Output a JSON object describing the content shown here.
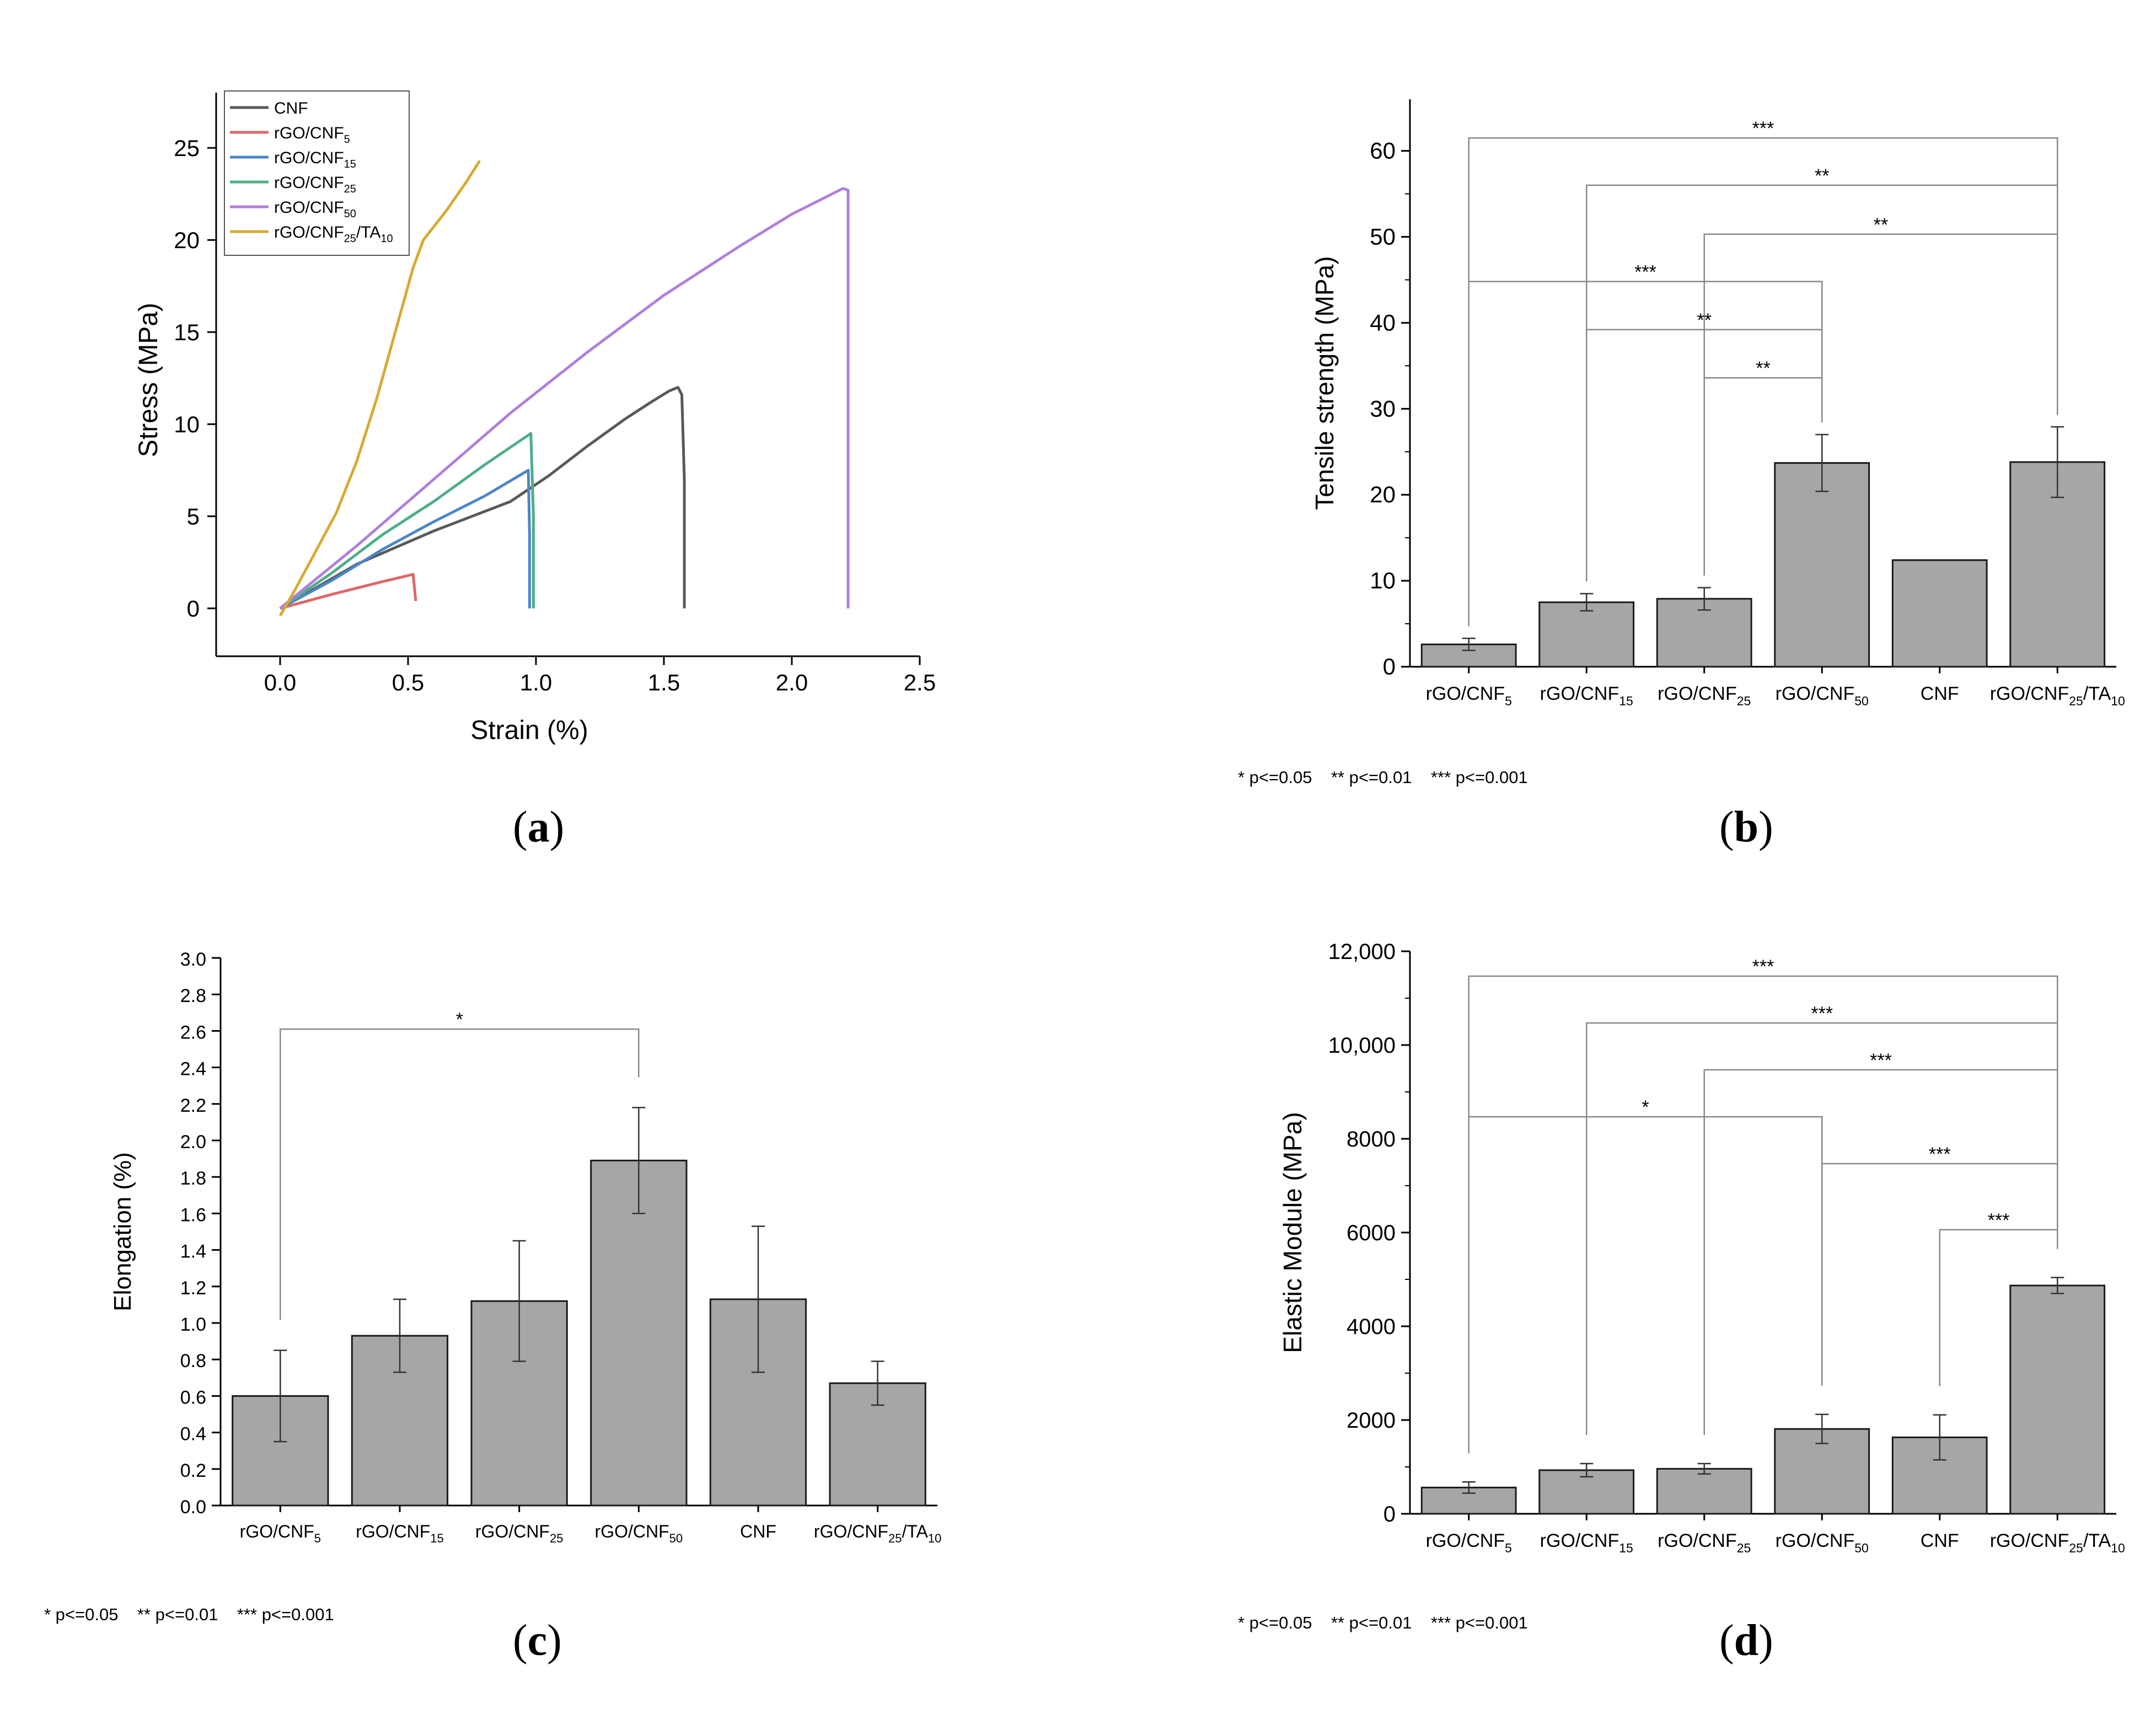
{
  "chart_data": [
    {
      "id": "a",
      "type": "line",
      "panel_label": "a",
      "xlabel": "Strain (%)",
      "ylabel": "Stress (MPa)",
      "xlim": [
        -0.25,
        2.5
      ],
      "ylim": [
        -2.6,
        28
      ],
      "xticks": [
        "0.0",
        "0.5",
        "1.0",
        "1.5",
        "2.0",
        "2.5"
      ],
      "yticks": [
        "0",
        "5",
        "10",
        "15",
        "20",
        "25"
      ],
      "legend_position": "top-left",
      "series": [
        {
          "name": "CNF",
          "label_base": "CNF",
          "label_sub": "",
          "label_tail": "",
          "label_sub2": "",
          "color": "#595959",
          "points": [
            [
              0,
              0
            ],
            [
              0.3,
              2.4
            ],
            [
              0.6,
              4.2
            ],
            [
              0.9,
              5.8
            ],
            [
              1.05,
              7.2
            ],
            [
              1.2,
              8.8
            ],
            [
              1.35,
              10.3
            ],
            [
              1.45,
              11.2
            ],
            [
              1.52,
              11.8
            ],
            [
              1.555,
              12.0
            ],
            [
              1.57,
              11.6
            ],
            [
              1.58,
              7
            ],
            [
              1.58,
              0
            ]
          ]
        },
        {
          "name": "rGO/CNF5",
          "label_base": "rGO/CNF",
          "label_sub": "5",
          "label_tail": "",
          "label_sub2": "",
          "color": "#e06666",
          "points": [
            [
              0,
              0
            ],
            [
              0.2,
              0.75
            ],
            [
              0.4,
              1.45
            ],
            [
              0.52,
              1.85
            ],
            [
              0.53,
              0.4
            ]
          ]
        },
        {
          "name": "rGO/CNF15",
          "label_base": "rGO/CNF",
          "label_sub": "15",
          "label_tail": "",
          "label_sub2": "",
          "color": "#4a86c8",
          "points": [
            [
              0,
              0
            ],
            [
              0.2,
              1.5
            ],
            [
              0.4,
              3.2
            ],
            [
              0.6,
              4.7
            ],
            [
              0.8,
              6.1
            ],
            [
              0.97,
              7.5
            ],
            [
              0.975,
              4
            ],
            [
              0.975,
              0
            ]
          ]
        },
        {
          "name": "rGO/CNF25",
          "label_base": "rGO/CNF",
          "label_sub": "25",
          "label_tail": "",
          "label_sub2": "",
          "color": "#4caf85",
          "points": [
            [
              0,
              0
            ],
            [
              0.2,
              1.9
            ],
            [
              0.4,
              4.0
            ],
            [
              0.6,
              5.8
            ],
            [
              0.8,
              7.8
            ],
            [
              0.98,
              9.5
            ],
            [
              0.99,
              5
            ],
            [
              0.99,
              0
            ]
          ]
        },
        {
          "name": "rGO/CNF50",
          "label_base": "rGO/CNF",
          "label_sub": "50",
          "label_tail": "",
          "label_sub2": "",
          "color": "#b07fdc",
          "points": [
            [
              0,
              0
            ],
            [
              0.3,
              3.4
            ],
            [
              0.6,
              7.0
            ],
            [
              0.9,
              10.6
            ],
            [
              1.2,
              13.9
            ],
            [
              1.5,
              17.0
            ],
            [
              1.8,
              19.7
            ],
            [
              2.0,
              21.4
            ],
            [
              2.2,
              22.8
            ],
            [
              2.22,
              22.7
            ],
            [
              2.22,
              12
            ],
            [
              2.22,
              0
            ]
          ]
        },
        {
          "name": "rGO/CNF25/TA10",
          "label_base": "rGO/CNF",
          "label_sub": "25",
          "label_tail": "/TA",
          "label_sub2": "10",
          "color": "#d6aa32",
          "points": [
            [
              0,
              -0.4
            ],
            [
              0.05,
              0.8
            ],
            [
              0.12,
              2.6
            ],
            [
              0.22,
              5.2
            ],
            [
              0.3,
              8.0
            ],
            [
              0.38,
              11.5
            ],
            [
              0.45,
              15.0
            ],
            [
              0.52,
              18.5
            ],
            [
              0.56,
              20.0
            ],
            [
              0.65,
              21.6
            ],
            [
              0.73,
              23.2
            ],
            [
              0.78,
              24.3
            ]
          ]
        }
      ]
    },
    {
      "id": "b",
      "type": "bar",
      "panel_label": "b",
      "ylabel": "Tensile strength (MPa)",
      "ylim": [
        0,
        66
      ],
      "yticks": [
        "0",
        "10",
        "20",
        "30",
        "40",
        "50",
        "60"
      ],
      "categories": [
        {
          "base": "rGO/CNF",
          "sub": "5",
          "tail": "",
          "sub2": ""
        },
        {
          "base": "rGO/CNF",
          "sub": "15",
          "tail": "",
          "sub2": ""
        },
        {
          "base": "rGO/CNF",
          "sub": "25",
          "tail": "",
          "sub2": ""
        },
        {
          "base": "rGO/CNF",
          "sub": "50",
          "tail": "",
          "sub2": ""
        },
        {
          "base": "CNF",
          "sub": "",
          "tail": "",
          "sub2": ""
        },
        {
          "base": "rGO/CNF",
          "sub": "25",
          "tail": "/TA",
          "sub2": "10"
        }
      ],
      "values": [
        2.6,
        7.5,
        7.9,
        23.7,
        12.4,
        23.8
      ],
      "errors": [
        0.7,
        1.0,
        1.3,
        3.3,
        0,
        4.1
      ],
      "brackets": [
        {
          "from": 0,
          "to": 5,
          "y": 61.5,
          "label": "***"
        },
        {
          "from": 1,
          "to": 5,
          "y": 56.0,
          "label": "**"
        },
        {
          "from": 2,
          "to": 5,
          "y": 50.3,
          "label": "**"
        },
        {
          "from": 0,
          "to": 3,
          "y": 44.8,
          "label": "***"
        },
        {
          "from": 1,
          "to": 3,
          "y": 39.2,
          "label": "**"
        },
        {
          "from": 2,
          "to": 3,
          "y": 33.6,
          "label": "**"
        }
      ],
      "significance_legend": "* p<=0.05    ** p<=0.01    *** p<=0.001"
    },
    {
      "id": "c",
      "type": "bar",
      "panel_label": "c",
      "ylabel": "Elongation (%)",
      "ylim": [
        0,
        3.0
      ],
      "yticks": [
        "0.0",
        "0.2",
        "0.4",
        "0.6",
        "0.8",
        "1.0",
        "1.2",
        "1.4",
        "1.6",
        "1.8",
        "2.0",
        "2.2",
        "2.4",
        "2.6",
        "2.8",
        "3.0"
      ],
      "categories": [
        {
          "base": "rGO/CNF",
          "sub": "5",
          "tail": "",
          "sub2": ""
        },
        {
          "base": "rGO/CNF",
          "sub": "15",
          "tail": "",
          "sub2": ""
        },
        {
          "base": "rGO/CNF",
          "sub": "25",
          "tail": "",
          "sub2": ""
        },
        {
          "base": "rGO/CNF",
          "sub": "50",
          "tail": "",
          "sub2": ""
        },
        {
          "base": "CNF",
          "sub": "",
          "tail": "",
          "sub2": ""
        },
        {
          "base": "rGO/CNF",
          "sub": "25",
          "tail": "/TA",
          "sub2": "10"
        }
      ],
      "values": [
        0.6,
        0.93,
        1.12,
        1.89,
        1.13,
        0.67
      ],
      "errors": [
        0.25,
        0.2,
        0.33,
        0.29,
        0.4,
        0.12
      ],
      "brackets": [
        {
          "from": 0,
          "to": 3,
          "y": 2.61,
          "label": "*"
        }
      ],
      "significance_legend": "* p<=0.05    ** p<=0.01    *** p<=0.001"
    },
    {
      "id": "d",
      "type": "bar",
      "panel_label": "d",
      "ylabel": "Elastic Module (MPa)",
      "ylim": [
        0,
        12000
      ],
      "yticks": [
        "0",
        "2000",
        "4000",
        "6000",
        "8000",
        "10,000",
        "12,000"
      ],
      "categories": [
        {
          "base": "rGO/CNF",
          "sub": "5",
          "tail": "",
          "sub2": ""
        },
        {
          "base": "rGO/CNF",
          "sub": "15",
          "tail": "",
          "sub2": ""
        },
        {
          "base": "rGO/CNF",
          "sub": "25",
          "tail": "",
          "sub2": ""
        },
        {
          "base": "rGO/CNF",
          "sub": "50",
          "tail": "",
          "sub2": ""
        },
        {
          "base": "CNF",
          "sub": "",
          "tail": "",
          "sub2": ""
        },
        {
          "base": "rGO/CNF",
          "sub": "25",
          "tail": "/TA",
          "sub2": "10"
        }
      ],
      "values": [
        560,
        930,
        960,
        1810,
        1630,
        4870
      ],
      "errors": [
        120,
        140,
        110,
        310,
        480,
        170
      ],
      "brackets": [
        {
          "from": 0,
          "to": 5,
          "y": 11470,
          "label": "***"
        },
        {
          "from": 1,
          "to": 5,
          "y": 10470,
          "label": "***"
        },
        {
          "from": 2,
          "to": 5,
          "y": 9470,
          "label": "***"
        },
        {
          "from": 0,
          "to": 3,
          "y": 8470,
          "label": "*"
        },
        {
          "from": 3,
          "to": 5,
          "y": 7470,
          "label": "***"
        },
        {
          "from": 4,
          "to": 5,
          "y": 6060,
          "label": "***"
        }
      ],
      "significance_legend": "* p<=0.05    ** p<=0.01    *** p<=0.001"
    }
  ]
}
